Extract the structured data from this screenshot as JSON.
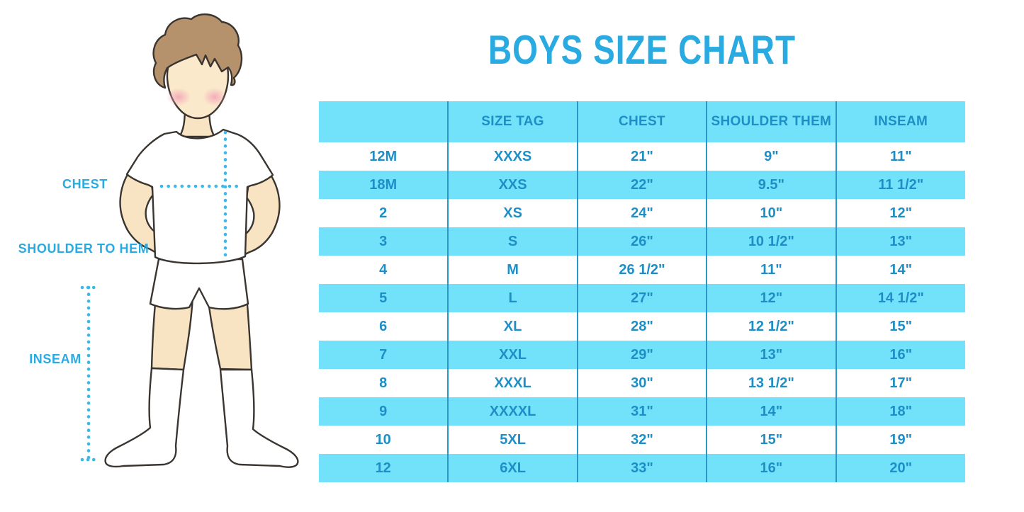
{
  "title": "BOYS SIZE CHART",
  "figure": {
    "description": "outline illustration of a boy in white t-shirt, shorts and knee socks with dotted measurement guides",
    "labels": {
      "chest": "CHEST",
      "shoulder_to_hem": "SHOULDER TO HEM",
      "inseam": "INSEAM"
    }
  },
  "chart_data": {
    "type": "table",
    "title": "BOYS SIZE CHART",
    "columns": [
      "",
      "SIZE TAG",
      "CHEST",
      "SHOULDER THEM",
      "INSEAM"
    ],
    "rows": [
      [
        "12M",
        "XXXS",
        "21\"",
        "9\"",
        "11\""
      ],
      [
        "18M",
        "XXS",
        "22\"",
        "9.5\"",
        "11 1/2\""
      ],
      [
        "2",
        "XS",
        "24\"",
        "10\"",
        "12\""
      ],
      [
        "3",
        "S",
        "26\"",
        "10 1/2\"",
        "13\""
      ],
      [
        "4",
        "M",
        "26 1/2\"",
        "11\"",
        "14\""
      ],
      [
        "5",
        "L",
        "27\"",
        "12\"",
        "14 1/2\""
      ],
      [
        "6",
        "XL",
        "28\"",
        "12 1/2\"",
        "15\""
      ],
      [
        "7",
        "XXL",
        "29\"",
        "13\"",
        "16\""
      ],
      [
        "8",
        "XXXL",
        "30\"",
        "13 1/2\"",
        "17\""
      ],
      [
        "9",
        "XXXXL",
        "31\"",
        "14\"",
        "18\""
      ],
      [
        "10",
        "5XL",
        "32\"",
        "15\"",
        "19\""
      ],
      [
        "12",
        "6XL",
        "33\"",
        "16\"",
        "20\""
      ]
    ],
    "layout": {
      "striped_rows": "white / light blue alternating",
      "grid": "vertical dividers only",
      "header_background": "light blue"
    }
  },
  "colors": {
    "accent_blue": "#29ABE2",
    "dotted_line_blue": "#3CB9E9",
    "row_blue": "#72E2FA",
    "table_text_blue": "#1E8FC6",
    "divider_blue": "#2B97C8",
    "hair_brown": "#B6926C",
    "skin": "#F8E4C2",
    "blush_pink": "#F2A3B5",
    "outline": "#3A3530"
  }
}
